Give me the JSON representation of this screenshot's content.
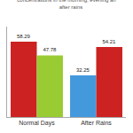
{
  "chart_data": {
    "type": "bar",
    "title": "concentrations in the morning, evening an\n      after rains",
    "categories": [
      "Normal Days",
      "After Rains"
    ],
    "series": [
      {
        "values": [
          58.29,
          32.25
        ],
        "colors": [
          "#cc2222",
          "#4499dd"
        ]
      },
      {
        "values": [
          47.78,
          54.21
        ],
        "colors": [
          "#99cc33",
          "#cc2222"
        ]
      }
    ],
    "ylim": [
      0,
      70
    ],
    "grid": false,
    "data_labels": true,
    "tick_labels": "x"
  }
}
